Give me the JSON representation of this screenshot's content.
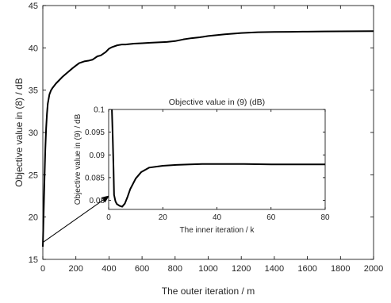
{
  "chart_data": [
    {
      "type": "line",
      "title": "",
      "xlabel": "The outer iteration / m",
      "ylabel": "Objective value in (8) / dB",
      "xlim": [
        0,
        2000
      ],
      "ylim": [
        15,
        45
      ],
      "xticks": [
        0,
        200,
        400,
        600,
        800,
        1000,
        1200,
        1400,
        1600,
        1800,
        2000
      ],
      "yticks": [
        15,
        20,
        25,
        30,
        35,
        40,
        45
      ],
      "grid": false,
      "series": [
        {
          "x": [
            0,
            5,
            10,
            15,
            20,
            25,
            30,
            40,
            50,
            60,
            80,
            100,
            120,
            150,
            180,
            200,
            220,
            250,
            280,
            300,
            330,
            350,
            380,
            400,
            420,
            450,
            480,
            500,
            550,
            600,
            650,
            700,
            750,
            800,
            850,
            900,
            950,
            1000,
            1100,
            1200,
            1300,
            1400,
            1500,
            1600,
            1700,
            1800,
            1900,
            2000
          ],
          "y": [
            16.5,
            20.5,
            24.5,
            28.0,
            30.5,
            32.2,
            33.4,
            34.5,
            35.0,
            35.3,
            35.8,
            36.2,
            36.6,
            37.1,
            37.6,
            37.9,
            38.2,
            38.4,
            38.5,
            38.6,
            39.0,
            39.1,
            39.5,
            39.9,
            40.1,
            40.3,
            40.4,
            40.4,
            40.5,
            40.55,
            40.6,
            40.65,
            40.7,
            40.8,
            41.0,
            41.15,
            41.25,
            41.4,
            41.6,
            41.75,
            41.85,
            41.88,
            41.9,
            41.92,
            41.94,
            41.95,
            41.96,
            41.98
          ]
        }
      ],
      "annotation": {
        "type": "arrow",
        "from": [
          0,
          17
        ],
        "to": [
          400,
          22.5
        ]
      }
    },
    {
      "type": "line",
      "title": "Objective value in (9) (dB)",
      "xlabel": "The inner iteration / k",
      "ylabel": "Objective value in (9) / dB",
      "xlim": [
        0,
        80
      ],
      "ylim": [
        0.078,
        0.1
      ],
      "xticks": [
        0,
        20,
        40,
        60,
        80
      ],
      "yticks": [
        0.08,
        0.085,
        0.09,
        0.095,
        0.1
      ],
      "ytick_labels": [
        "0.08",
        "0.085",
        "0.09",
        "0.095",
        "0.1"
      ],
      "grid": false,
      "series": [
        {
          "x": [
            1.2,
            1.5,
            1.8,
            2.0,
            2.5,
            3.0,
            4.0,
            5.0,
            6.0,
            7.0,
            8.0,
            10.0,
            12.0,
            15.0,
            20.0,
            25.0,
            30.0,
            35.0,
            40.0,
            50.0,
            60.0,
            70.0,
            80.0
          ],
          "y": [
            0.1012,
            0.094,
            0.087,
            0.0812,
            0.0798,
            0.0792,
            0.0788,
            0.0786,
            0.0793,
            0.0808,
            0.0825,
            0.0848,
            0.0862,
            0.0872,
            0.0876,
            0.0878,
            0.0879,
            0.088,
            0.088,
            0.088,
            0.0879,
            0.0879,
            0.0879
          ]
        }
      ]
    }
  ]
}
